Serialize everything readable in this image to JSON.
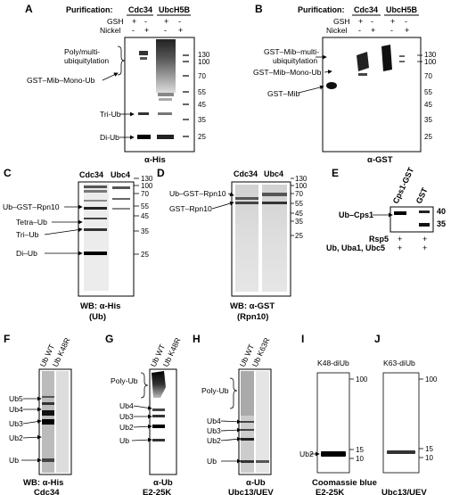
{
  "figure": {
    "A": {
      "letter": "A",
      "purification_label": "Purification:",
      "enzymes": [
        "Cdc34",
        "UbcH5B"
      ],
      "rows": [
        {
          "label": "GSH",
          "signs": [
            "+",
            "-",
            "+",
            "-"
          ]
        },
        {
          "label": "Nickel",
          "signs": [
            "-",
            "+",
            "-",
            "+"
          ]
        }
      ],
      "band_labels": [
        "Poly/multi-",
        "ubiquitylation",
        "GST–Mib–Mono-Ub",
        "Tri-Ub",
        "Di-Ub"
      ],
      "markers": [
        "130",
        "100",
        "70",
        "55",
        "45",
        "35",
        "25"
      ],
      "caption": "α-His"
    },
    "B": {
      "letter": "B",
      "purification_label": "Purification:",
      "enzymes": [
        "Cdc34",
        "UbcH5B"
      ],
      "rows": [
        {
          "label": "GSH",
          "signs": [
            "+",
            "-",
            "+",
            "-"
          ]
        },
        {
          "label": "Nickel",
          "signs": [
            "-",
            "+",
            "-",
            "+"
          ]
        }
      ],
      "band_labels": [
        "GST–Mib–multi-",
        "ubiquitylation",
        "GST–Mib–Mono-Ub",
        "GST–Mib"
      ],
      "markers": [
        "130",
        "100",
        "70",
        "55",
        "45",
        "35",
        "25"
      ],
      "caption": "α-GST"
    },
    "C": {
      "letter": "C",
      "lanes": [
        "Cdc34",
        "Ubc4"
      ],
      "band_labels": [
        "Ub–GST–Rpn10",
        "Tetra–Ub",
        "Tri–Ub",
        "Di–Ub"
      ],
      "markers": [
        "130",
        "100",
        "70",
        "55",
        "45",
        "35",
        "25"
      ],
      "caption_line1": "WB: α-His",
      "caption_line2": "(Ub)"
    },
    "D": {
      "letter": "D",
      "lanes": [
        "Cdc34",
        "Ubc4"
      ],
      "band_labels": [
        "Ub–GST–Rpn10",
        "GST–Rpn10"
      ],
      "markers": [
        "130",
        "100",
        "70",
        "55",
        "45",
        "35",
        "25"
      ],
      "caption_line1": "WB: α-GST",
      "caption_line2": "(Rpn10)"
    },
    "E": {
      "letter": "E",
      "lanes": [
        "Cps1-GST",
        "GST"
      ],
      "band_label": "Ub–Cps1",
      "markers": [
        "40",
        "35"
      ],
      "rows": [
        {
          "label": "Rsp5",
          "signs": [
            "+",
            "+"
          ]
        },
        {
          "label": "Ub, Uba1, Ubc5",
          "signs": [
            "+",
            "+"
          ]
        }
      ]
    },
    "F": {
      "letter": "F",
      "lanes": [
        "Ub WT",
        "Ub K48R"
      ],
      "band_labels": [
        "Ub5",
        "Ub4",
        "Ub3",
        "Ub2",
        "Ub"
      ],
      "caption": "WB: α-His",
      "enzyme": "Cdc34"
    },
    "G": {
      "letter": "G",
      "lanes": [
        "Ub WT",
        "Ub K48R"
      ],
      "band_labels": [
        "Poly-Ub",
        "Ub4",
        "Ub3",
        "Ub2",
        "Ub"
      ],
      "caption": "α-Ub",
      "enzyme": "E2-25K"
    },
    "H": {
      "letter": "H",
      "lanes": [
        "Ub WT",
        "Ub K63R"
      ],
      "band_labels": [
        "Poly-Ub",
        "Ub4",
        "Ub3",
        "Ub2",
        "Ub"
      ],
      "caption": "α-Ub",
      "enzyme": "Ubc13/UEV"
    },
    "I": {
      "letter": "I",
      "title": "K48-diUb",
      "band_label": "Ub2",
      "markers": [
        "100",
        "15",
        "10"
      ],
      "caption": "Coomassie blue",
      "enzyme": "E2-25K"
    },
    "J": {
      "letter": "J",
      "title": "K63-diUb",
      "markers": [
        "100",
        "15",
        "10"
      ],
      "enzyme": "Ubc13/UEV"
    }
  }
}
